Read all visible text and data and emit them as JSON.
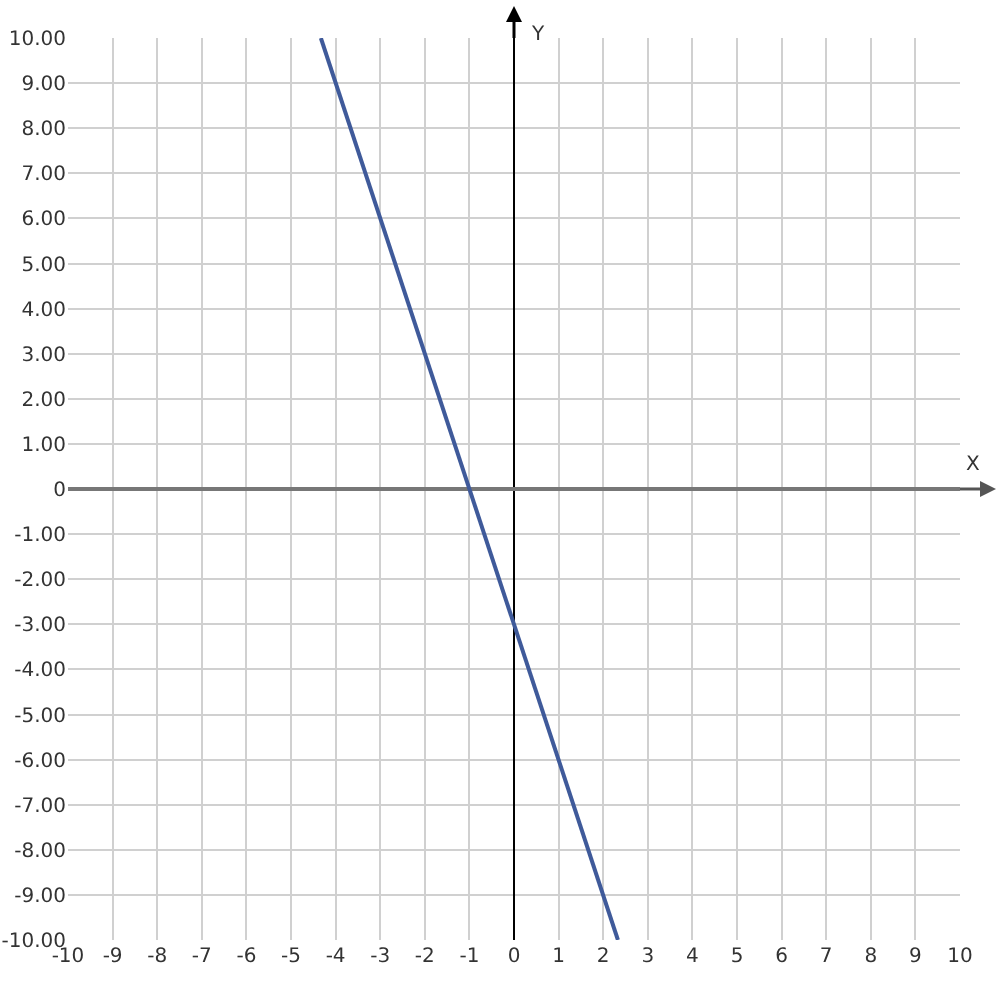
{
  "chart_data": {
    "type": "line",
    "xlabel": "X",
    "ylabel": "Y",
    "series": [
      {
        "color": "#3f5a9a",
        "x": [
          -4.33,
          2.33
        ],
        "values": [
          10,
          -10
        ]
      }
    ],
    "xlim": [
      -10,
      10
    ],
    "xticks": [
      -10,
      -9,
      -8,
      -7,
      -6,
      -5,
      -4,
      -3,
      -2,
      -1,
      0,
      1,
      2,
      3,
      4,
      5,
      6,
      7,
      8,
      9,
      10
    ],
    "ylim": [
      -10,
      10
    ],
    "yticks": [
      {
        "value": 10,
        "label": "10.00"
      },
      {
        "value": 9,
        "label": "9.00"
      },
      {
        "value": 8,
        "label": "8.00"
      },
      {
        "value": 7,
        "label": "7.00"
      },
      {
        "value": 6,
        "label": "6.00"
      },
      {
        "value": 5,
        "label": "5.00"
      },
      {
        "value": 4,
        "label": "4.00"
      },
      {
        "value": 3,
        "label": "3.00"
      },
      {
        "value": 2,
        "label": "2.00"
      },
      {
        "value": 1,
        "label": "1.00"
      },
      0,
      {
        "value": -1,
        "label": "-1.00"
      },
      {
        "value": -2,
        "label": "-2.00"
      },
      {
        "value": -3,
        "label": "-3.00"
      },
      {
        "value": -4,
        "label": "-4.00"
      },
      {
        "value": -5,
        "label": "-5.00"
      },
      {
        "value": -6,
        "label": "-6.00"
      },
      {
        "value": -7,
        "label": "-7.00"
      },
      {
        "value": -8,
        "label": "-8.00"
      },
      {
        "value": -9,
        "label": "-9.00"
      },
      {
        "value": -10,
        "label": "-10.00"
      }
    ],
    "grid": true,
    "marker": "none",
    "line_style": "solid"
  }
}
